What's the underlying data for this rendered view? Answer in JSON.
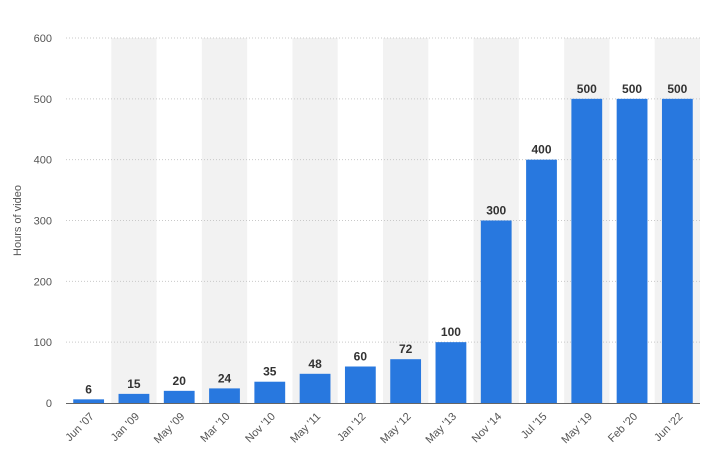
{
  "chart_data": {
    "type": "bar",
    "ylabel": "Hours of video",
    "ylim": [
      0,
      600
    ],
    "yticks": [
      0,
      100,
      200,
      300,
      400,
      500,
      600
    ],
    "grid": true,
    "categories": [
      "Jun '07",
      "Jan '09",
      "May '09",
      "Mar '10",
      "Nov '10",
      "May '11",
      "Jan '12",
      "May '12",
      "May '13",
      "Nov '14",
      "Jul '15",
      "May '19",
      "Feb '20",
      "Jun '22"
    ],
    "values": [
      6,
      15,
      20,
      24,
      35,
      48,
      60,
      72,
      100,
      300,
      400,
      500,
      500,
      500
    ],
    "bar_color": "#2878df"
  }
}
